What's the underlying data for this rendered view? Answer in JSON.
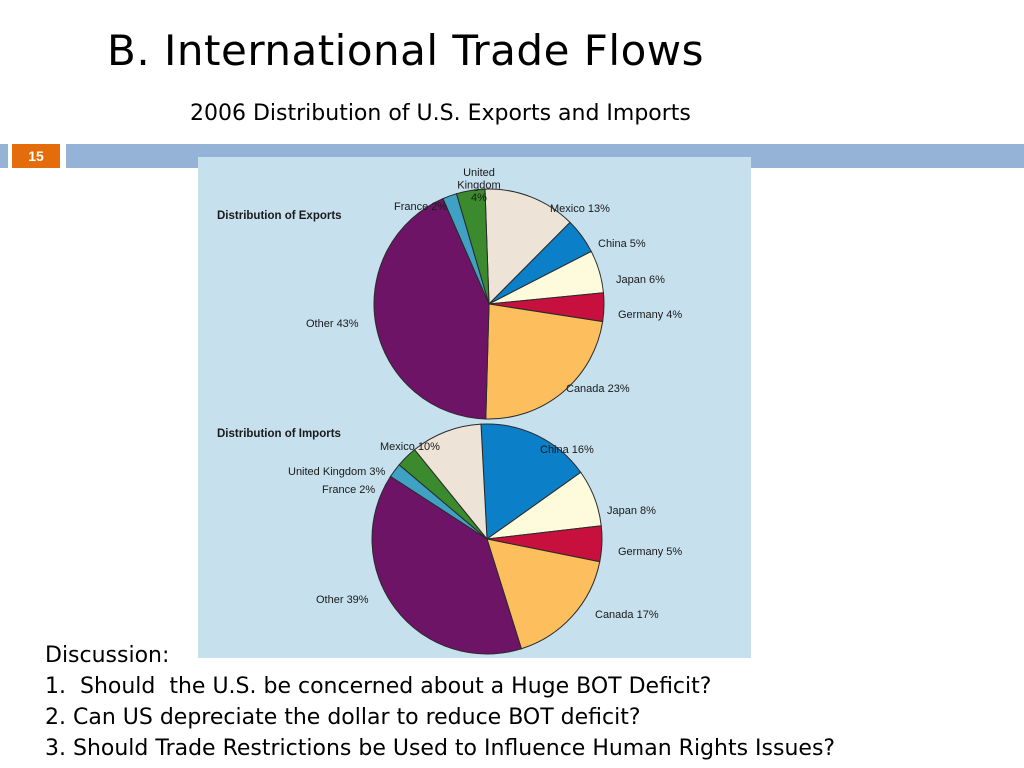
{
  "slide": {
    "title": "B.  International Trade Flows",
    "subtitle": "2006 Distribution of U.S. Exports and Imports",
    "slide_number": "15",
    "accent_color": "#e46c0a",
    "bar_color": "#95b3d7",
    "panel_color": "#c6e0ee"
  },
  "discussion": {
    "heading": "Discussion:",
    "items": [
      "1.  Should  the U.S. be concerned about a Huge BOT Deficit?",
      "2. Can US depreciate the dollar to reduce BOT deficit?",
      "3. Should Trade Restrictions be Used to Influence Human Rights Issues?"
    ]
  },
  "chart_data": [
    {
      "type": "pie",
      "title": "Distribution of Exports",
      "slices": [
        {
          "label": "Mexico",
          "value": 13,
          "display": "Mexico 13%",
          "color": "#ede3d6"
        },
        {
          "label": "China",
          "value": 5,
          "display": "China 5%",
          "color": "#0b7fc7"
        },
        {
          "label": "Japan",
          "value": 6,
          "display": "Japan 6%",
          "color": "#fefbdc"
        },
        {
          "label": "Germany",
          "value": 4,
          "display": "Germany 4%",
          "color": "#c8103f"
        },
        {
          "label": "Canada",
          "value": 23,
          "display": "Canada 23%",
          "color": "#fdbe5d"
        },
        {
          "label": "Other",
          "value": 43,
          "display": "Other 43%",
          "color": "#6e1467"
        },
        {
          "label": "France",
          "value": 2,
          "display": "France 2%",
          "color": "#3fa1c4"
        },
        {
          "label": "United Kingdom",
          "value": 4,
          "display": "United\nKingdom\n4%",
          "color": "#3b8a2e"
        }
      ]
    },
    {
      "type": "pie",
      "title": "Distribution of Imports",
      "slices": [
        {
          "label": "China",
          "value": 16,
          "display": "China 16%",
          "color": "#0b7fc7"
        },
        {
          "label": "Japan",
          "value": 8,
          "display": "Japan 8%",
          "color": "#fefbdc"
        },
        {
          "label": "Germany",
          "value": 5,
          "display": "Germany 5%",
          "color": "#c8103f"
        },
        {
          "label": "Canada",
          "value": 17,
          "display": "Canada 17%",
          "color": "#fdbe5d"
        },
        {
          "label": "Other",
          "value": 39,
          "display": "Other 39%",
          "color": "#6e1467"
        },
        {
          "label": "France",
          "value": 2,
          "display": "France 2%",
          "color": "#3fa1c4"
        },
        {
          "label": "United Kingdom",
          "value": 3,
          "display": "United Kingdom 3%",
          "color": "#3b8a2e"
        },
        {
          "label": "Mexico",
          "value": 10,
          "display": "Mexico 10%",
          "color": "#ede3d6"
        }
      ]
    }
  ]
}
